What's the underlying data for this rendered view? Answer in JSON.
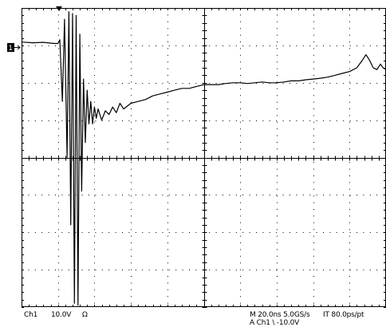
{
  "readout": {
    "channel": "Ch1",
    "volts_per_div": "10.0V",
    "coupling_symbol": "Ω",
    "timebase": "M 20.0ns 5.0GS/s",
    "interp": "IT 80.0ps/pt",
    "trigger": "A  Ch1  \\  -10.0V"
  },
  "marker": {
    "channel_label": "1"
  },
  "chart_data": {
    "type": "line",
    "title": "",
    "xlabel": "",
    "ylabel": "",
    "grid": true,
    "grid_divisions": {
      "x": 10,
      "y": 8
    },
    "xlim": [
      0,
      10
    ],
    "ylim": [
      -4,
      4
    ],
    "x_unit": "div (20.0 ns/div)",
    "y_unit": "div (10.0 V/div)",
    "series": [
      {
        "color": "#000000",
        "points": [
          [
            0.0,
            3.09
          ],
          [
            0.3,
            3.07
          ],
          [
            0.6,
            3.08
          ],
          [
            0.9,
            3.05
          ],
          [
            1.0,
            3.05
          ],
          [
            1.05,
            3.15
          ],
          [
            1.12,
            1.5
          ],
          [
            1.18,
            3.7
          ],
          [
            1.25,
            0.0
          ],
          [
            1.3,
            3.9
          ],
          [
            1.35,
            -1.8
          ],
          [
            1.4,
            3.85
          ],
          [
            1.45,
            -3.9
          ],
          [
            1.5,
            3.8
          ],
          [
            1.55,
            -3.95
          ],
          [
            1.6,
            3.3
          ],
          [
            1.65,
            -0.9
          ],
          [
            1.7,
            2.1
          ],
          [
            1.75,
            0.4
          ],
          [
            1.8,
            1.8
          ],
          [
            1.85,
            0.9
          ],
          [
            1.9,
            1.5
          ],
          [
            1.95,
            0.9
          ],
          [
            2.0,
            1.35
          ],
          [
            2.05,
            1.05
          ],
          [
            2.1,
            1.3
          ],
          [
            2.2,
            1.0
          ],
          [
            2.3,
            1.25
          ],
          [
            2.4,
            1.15
          ],
          [
            2.5,
            1.35
          ],
          [
            2.6,
            1.2
          ],
          [
            2.7,
            1.45
          ],
          [
            2.8,
            1.3
          ],
          [
            3.0,
            1.45
          ],
          [
            3.2,
            1.5
          ],
          [
            3.4,
            1.55
          ],
          [
            3.6,
            1.65
          ],
          [
            3.8,
            1.7
          ],
          [
            4.0,
            1.75
          ],
          [
            4.2,
            1.8
          ],
          [
            4.4,
            1.85
          ],
          [
            4.6,
            1.85
          ],
          [
            4.8,
            1.9
          ],
          [
            5.0,
            1.95
          ],
          [
            5.2,
            1.95
          ],
          [
            5.4,
            1.95
          ],
          [
            5.6,
            1.98
          ],
          [
            5.8,
            2.0
          ],
          [
            6.0,
            2.0
          ],
          [
            6.2,
            1.98
          ],
          [
            6.4,
            2.0
          ],
          [
            6.6,
            2.02
          ],
          [
            6.8,
            2.0
          ],
          [
            7.0,
            2.0
          ],
          [
            7.2,
            2.02
          ],
          [
            7.4,
            2.05
          ],
          [
            7.6,
            2.05
          ],
          [
            7.8,
            2.08
          ],
          [
            8.0,
            2.1
          ],
          [
            8.2,
            2.12
          ],
          [
            8.4,
            2.15
          ],
          [
            8.6,
            2.2
          ],
          [
            8.8,
            2.25
          ],
          [
            9.0,
            2.3
          ],
          [
            9.2,
            2.4
          ],
          [
            9.35,
            2.6
          ],
          [
            9.45,
            2.75
          ],
          [
            9.55,
            2.6
          ],
          [
            9.65,
            2.4
          ],
          [
            9.75,
            2.35
          ],
          [
            9.85,
            2.5
          ],
          [
            9.92,
            2.4
          ],
          [
            10.0,
            2.35
          ]
        ]
      }
    ]
  }
}
